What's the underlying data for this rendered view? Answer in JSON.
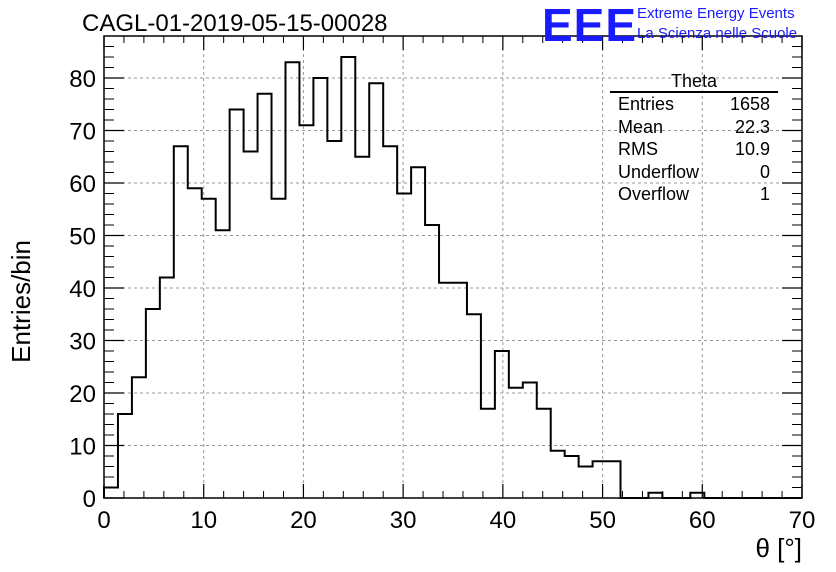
{
  "title": "CAGL-01-2019-05-15-00028",
  "logo": {
    "mark": "EEE",
    "line1": "Extreme Energy Events",
    "line2": "La Scienza nelle Scuole",
    "color": "#1a1aff"
  },
  "stats": {
    "name": "Theta",
    "rows": [
      {
        "label": "Entries",
        "value": "1658"
      },
      {
        "label": "Mean",
        "value": "22.3"
      },
      {
        "label": "RMS",
        "value": "10.9"
      },
      {
        "label": "Underflow",
        "value": "0"
      },
      {
        "label": "Overflow",
        "value": "1"
      }
    ]
  },
  "chart_data": {
    "type": "bar",
    "style": "step-histogram",
    "title": "CAGL-01-2019-05-15-00028",
    "xlabel": "θ [°]",
    "ylabel": "Entries/bin",
    "xlim": [
      0,
      70
    ],
    "ylim": [
      0,
      88
    ],
    "bin_width": 1.4,
    "x_ticks": [
      0,
      10,
      20,
      30,
      40,
      50,
      60,
      70
    ],
    "y_ticks": [
      0,
      10,
      20,
      30,
      40,
      50,
      60,
      70,
      80
    ],
    "grid": true,
    "values": [
      2,
      16,
      23,
      36,
      42,
      67,
      59,
      57,
      51,
      74,
      66,
      77,
      57,
      83,
      71,
      80,
      68,
      84,
      65,
      79,
      67,
      58,
      63,
      52,
      41,
      41,
      35,
      17,
      28,
      21,
      22,
      17,
      9,
      8,
      6,
      7,
      7,
      0,
      0,
      1,
      0,
      0,
      1,
      0,
      0,
      0,
      0,
      0,
      0,
      0
    ]
  }
}
